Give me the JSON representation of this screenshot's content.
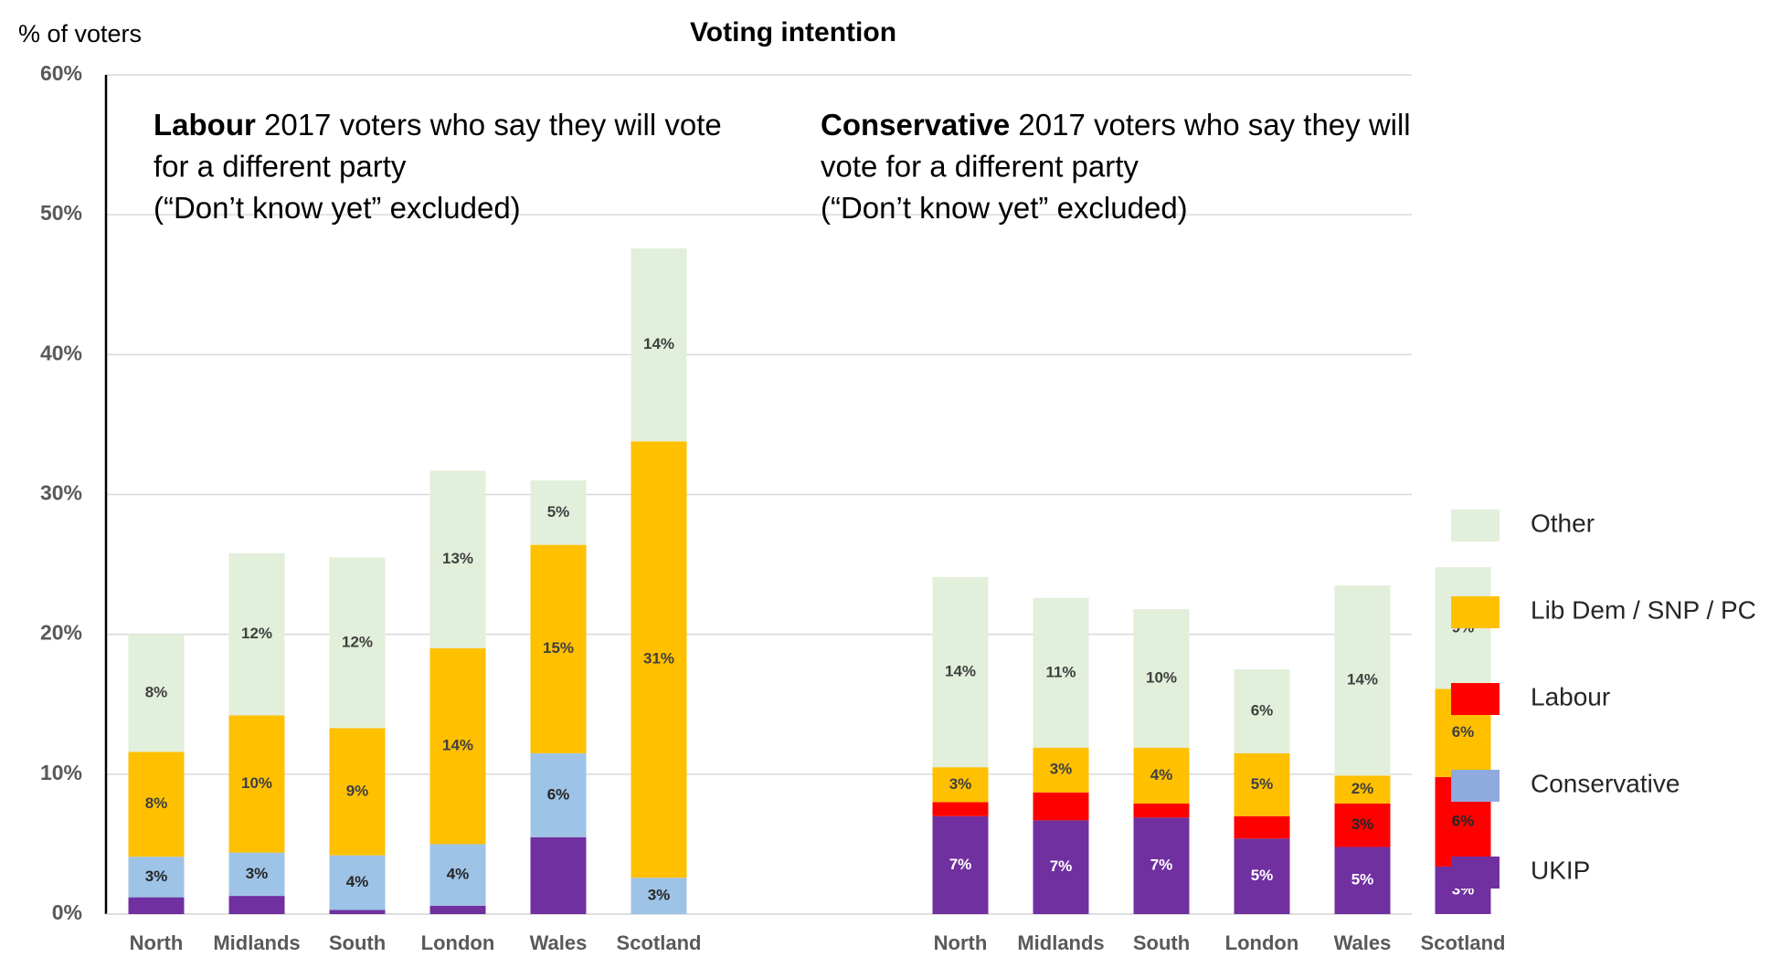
{
  "chart_data": {
    "type": "stacked-bar",
    "title": "Voting intention",
    "y_label": "% of voters",
    "ylim": [
      0,
      60
    ],
    "yticks": [
      {
        "value": 0,
        "label": "0%"
      },
      {
        "value": 10,
        "label": "10%"
      },
      {
        "value": 20,
        "label": "20%"
      },
      {
        "value": 30,
        "label": "30%"
      },
      {
        "value": 40,
        "label": "40%"
      },
      {
        "value": 50,
        "label": "50%"
      },
      {
        "value": 60,
        "label": "60%"
      }
    ],
    "grid": true,
    "categories": [
      "North",
      "Midlands",
      "South",
      "London",
      "Wales",
      "Scotland",
      "North",
      "Midlands",
      "South",
      "London",
      "Wales",
      "Scotland"
    ],
    "groups": [
      {
        "annotation": {
          "bold": "Labour",
          "lines": [
            " 2017 voters who say they will vote",
            "for a different party",
            "(“Don’t know yet” excluded)"
          ]
        }
      },
      {
        "annotation": {
          "bold": "Conservative",
          "lines": [
            " 2017 voters who say they will",
            "vote for a different party",
            "(“Don’t know yet” excluded)"
          ]
        }
      }
    ],
    "series": [
      {
        "name": "UKIP",
        "color": "#7030a0",
        "label_color": "#ffffff",
        "values": [
          1.2,
          1.3,
          0.3,
          0.6,
          5.5,
          null,
          7,
          6.7,
          6.9,
          5.4,
          4.8,
          3.4
        ],
        "value_labels": [
          null,
          null,
          null,
          null,
          null,
          null,
          "7%",
          "7%",
          "7%",
          "5%",
          "5%",
          "3%"
        ]
      },
      {
        "name": "Conservative",
        "color": "#9dc3e6",
        "legend_color": "#8faadc",
        "label_color": "#262626",
        "values": [
          2.9,
          3.1,
          3.9,
          4.4,
          6,
          2.6,
          null,
          null,
          null,
          null,
          null,
          null
        ],
        "value_labels": [
          "3%",
          "3%",
          "4%",
          "4%",
          "6%",
          "3%",
          null,
          null,
          null,
          null,
          null,
          null
        ]
      },
      {
        "name": "Labour",
        "color": "#ff0000",
        "label_color": "#262626",
        "values": [
          null,
          null,
          null,
          null,
          null,
          null,
          1,
          2,
          1,
          1.6,
          3.1,
          6.4
        ],
        "value_labels": [
          null,
          null,
          null,
          null,
          null,
          null,
          null,
          null,
          null,
          null,
          "3%",
          "6%"
        ]
      },
      {
        "name": "Lib Dem / SNP / PC",
        "color": "#ffc000",
        "label_color": "#404040",
        "values": [
          7.5,
          9.8,
          9.1,
          14,
          14.9,
          31.2,
          2.5,
          3.2,
          4,
          4.5,
          2,
          6.3
        ],
        "value_labels": [
          "8%",
          "10%",
          "9%",
          "14%",
          "15%",
          "31%",
          "3%",
          "3%",
          "4%",
          "5%",
          "2%",
          "6%"
        ]
      },
      {
        "name": "Other",
        "color": "#e2efda",
        "label_color": "#404040",
        "values": [
          8.4,
          11.6,
          12.2,
          12.7,
          4.6,
          13.8,
          13.6,
          10.7,
          9.9,
          6,
          13.6,
          8.7
        ],
        "value_labels": [
          "8%",
          "12%",
          "12%",
          "13%",
          "5%",
          "14%",
          "14%",
          "11%",
          "10%",
          "6%",
          "14%",
          "9%"
        ]
      }
    ]
  }
}
